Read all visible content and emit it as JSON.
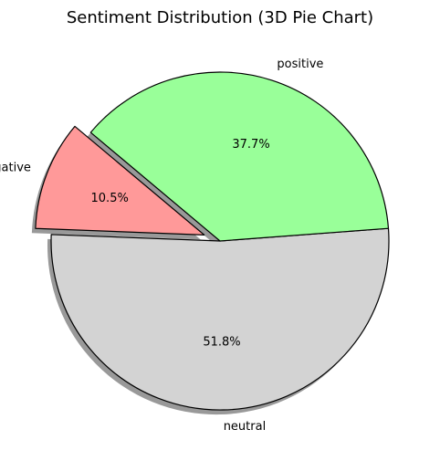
{
  "chart_data": {
    "type": "pie",
    "title": "Sentiment Distribution (3D Pie Chart)",
    "start_angle_deg": 140,
    "direction": "counterclockwise",
    "shadow": true,
    "slices": [
      {
        "label": "negative",
        "value": 10.5,
        "pct_label": "10.5%",
        "color": "#ff9999",
        "exploded": true
      },
      {
        "label": "neutral",
        "value": 51.8,
        "pct_label": "51.8%",
        "color": "#d3d3d3",
        "exploded": false
      },
      {
        "label": "positive",
        "value": 37.7,
        "pct_label": "37.7%",
        "color": "#99ff99",
        "exploded": false
      }
    ],
    "edge_color": "#000000",
    "shadow_color": "#7f7f7f"
  }
}
